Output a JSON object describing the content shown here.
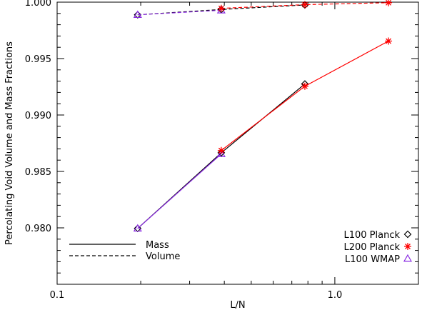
{
  "chart_data": {
    "type": "line",
    "title": "",
    "xlabel": "L/N",
    "ylabel": "Percolating Void Volume and Mass Fractions",
    "x_scale": "log",
    "xlim": [
      0.1,
      2.0
    ],
    "ylim": [
      0.975,
      1.0
    ],
    "x_ticks": [
      0.1,
      1.0
    ],
    "x_tick_labels": [
      "0.1",
      "1.0"
    ],
    "y_ticks": [
      0.98,
      0.985,
      0.99,
      0.995,
      1.0
    ],
    "y_tick_labels": [
      "0.980",
      "0.985",
      "0.990",
      "0.995",
      "1.000"
    ],
    "grid": false,
    "series": [
      {
        "name": "L100 Planck",
        "quantity": "Mass",
        "color": "#000000",
        "marker": "diamond",
        "linestyle": "solid",
        "x": [
          0.195,
          0.39,
          0.78
        ],
        "y": [
          0.97995,
          0.98665,
          0.99275
        ]
      },
      {
        "name": "L100 Planck",
        "quantity": "Volume",
        "color": "#000000",
        "marker": "diamond",
        "linestyle": "dashed",
        "x": [
          0.195,
          0.39,
          0.78
        ],
        "y": [
          0.99888,
          0.99935,
          0.99975
        ]
      },
      {
        "name": "L200 Planck",
        "quantity": "Mass",
        "color": "#ff0000",
        "marker": "asterisk",
        "linestyle": "solid",
        "x": [
          0.39,
          0.78,
          1.56
        ],
        "y": [
          0.98685,
          0.99255,
          0.99655
        ]
      },
      {
        "name": "L200 Planck",
        "quantity": "Volume",
        "color": "#ff0000",
        "marker": "asterisk",
        "linestyle": "dashed",
        "x": [
          0.39,
          0.78,
          1.56
        ],
        "y": [
          0.99945,
          0.99978,
          0.99995
        ]
      },
      {
        "name": "L100 WMAP",
        "quantity": "Mass",
        "color": "#8a2be2",
        "marker": "triangle",
        "linestyle": "solid",
        "x": [
          0.195,
          0.39
        ],
        "y": [
          0.97995,
          0.98655
        ]
      },
      {
        "name": "L100 WMAP",
        "quantity": "Volume",
        "color": "#8a2be2",
        "marker": "triangle",
        "linestyle": "dashed",
        "x": [
          0.195,
          0.39
        ],
        "y": [
          0.99888,
          0.99928
        ]
      }
    ],
    "legend_linestyle": {
      "placement": "bottom-left",
      "entries": [
        {
          "label": "Mass",
          "linestyle": "solid"
        },
        {
          "label": "Volume",
          "linestyle": "dashed"
        }
      ]
    },
    "legend_markers": {
      "placement": "bottom-right",
      "entries": [
        {
          "label": "L100 Planck",
          "marker": "diamond",
          "color": "#000000"
        },
        {
          "label": "L200 Planck",
          "marker": "asterisk",
          "color": "#ff0000"
        },
        {
          "label": "L100 WMAP",
          "marker": "triangle",
          "color": "#8a2be2"
        }
      ]
    }
  }
}
